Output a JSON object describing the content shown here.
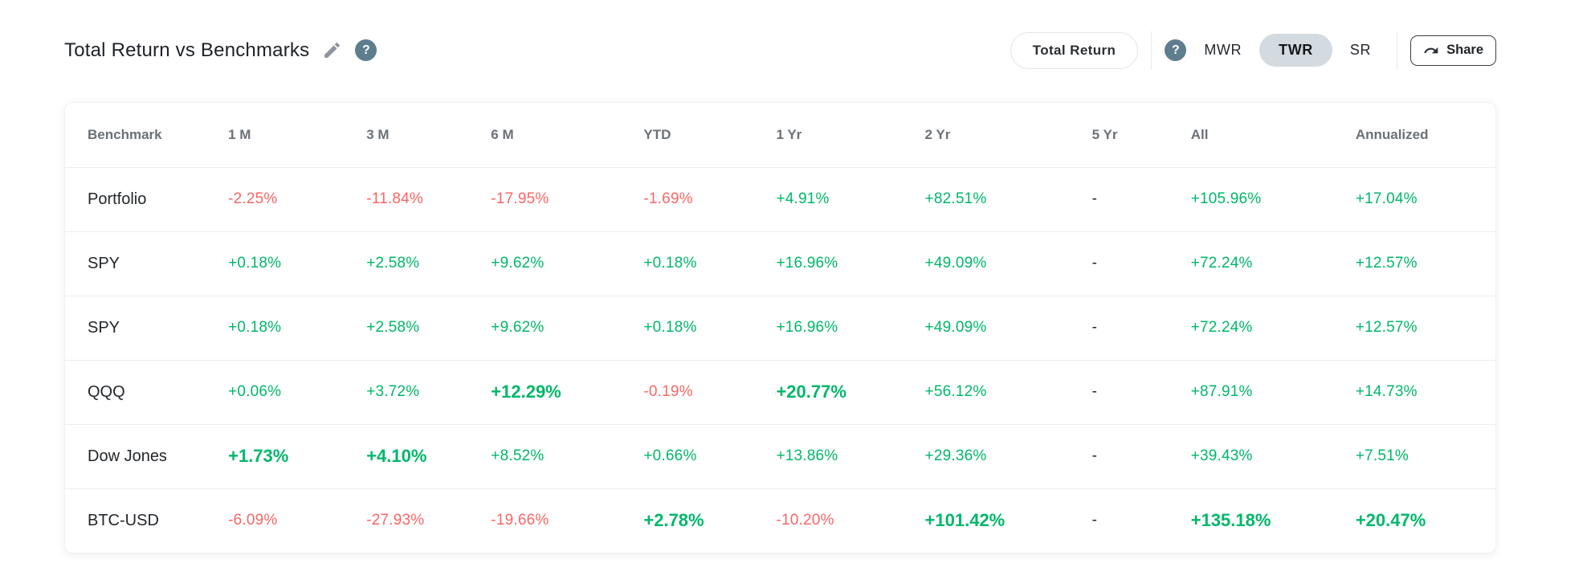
{
  "colors": {
    "positive": "#00b76a",
    "negative": "#fa6666",
    "twr_pill_bg": "#d3dae0",
    "help_icon_bg": "#5e7d8d"
  },
  "header": {
    "title": "Total Return vs Benchmarks",
    "help_glyph": "?",
    "metric_selector": "Total Return",
    "modes": [
      {
        "label": "MWR",
        "active": false
      },
      {
        "label": "TWR",
        "active": true
      },
      {
        "label": "SR",
        "active": false
      }
    ],
    "share": "Share"
  },
  "table": {
    "columns": [
      "Benchmark",
      "1 M",
      "3 M",
      "6 M",
      "YTD",
      "1 Yr",
      "2 Yr",
      "5 Yr",
      "All",
      "Annualized"
    ],
    "rows": [
      {
        "name": "Portfolio",
        "cells": [
          {
            "text": "-2.25%",
            "tone": "neg"
          },
          {
            "text": "-11.84%",
            "tone": "neg"
          },
          {
            "text": "-17.95%",
            "tone": "neg"
          },
          {
            "text": "-1.69%",
            "tone": "neg"
          },
          {
            "text": "+4.91%",
            "tone": "pos"
          },
          {
            "text": "+82.51%",
            "tone": "pos"
          },
          {
            "text": "-",
            "tone": "dash"
          },
          {
            "text": "+105.96%",
            "tone": "pos"
          },
          {
            "text": "+17.04%",
            "tone": "pos"
          }
        ]
      },
      {
        "name": "SPY",
        "cells": [
          {
            "text": "+0.18%",
            "tone": "pos"
          },
          {
            "text": "+2.58%",
            "tone": "pos"
          },
          {
            "text": "+9.62%",
            "tone": "pos"
          },
          {
            "text": "+0.18%",
            "tone": "pos"
          },
          {
            "text": "+16.96%",
            "tone": "pos"
          },
          {
            "text": "+49.09%",
            "tone": "pos"
          },
          {
            "text": "-",
            "tone": "dash"
          },
          {
            "text": "+72.24%",
            "tone": "pos"
          },
          {
            "text": "+12.57%",
            "tone": "pos"
          }
        ]
      },
      {
        "name": "SPY",
        "cells": [
          {
            "text": "+0.18%",
            "tone": "pos"
          },
          {
            "text": "+2.58%",
            "tone": "pos"
          },
          {
            "text": "+9.62%",
            "tone": "pos"
          },
          {
            "text": "+0.18%",
            "tone": "pos"
          },
          {
            "text": "+16.96%",
            "tone": "pos"
          },
          {
            "text": "+49.09%",
            "tone": "pos"
          },
          {
            "text": "-",
            "tone": "dash"
          },
          {
            "text": "+72.24%",
            "tone": "pos"
          },
          {
            "text": "+12.57%",
            "tone": "pos"
          }
        ]
      },
      {
        "name": "QQQ",
        "cells": [
          {
            "text": "+0.06%",
            "tone": "pos"
          },
          {
            "text": "+3.72%",
            "tone": "pos"
          },
          {
            "text": "+12.29%",
            "tone": "pos",
            "bold": true
          },
          {
            "text": "-0.19%",
            "tone": "neg"
          },
          {
            "text": "+20.77%",
            "tone": "pos",
            "bold": true
          },
          {
            "text": "+56.12%",
            "tone": "pos"
          },
          {
            "text": "-",
            "tone": "dash"
          },
          {
            "text": "+87.91%",
            "tone": "pos"
          },
          {
            "text": "+14.73%",
            "tone": "pos"
          }
        ]
      },
      {
        "name": "Dow Jones",
        "cells": [
          {
            "text": "+1.73%",
            "tone": "pos",
            "bold": true
          },
          {
            "text": "+4.10%",
            "tone": "pos",
            "bold": true
          },
          {
            "text": "+8.52%",
            "tone": "pos"
          },
          {
            "text": "+0.66%",
            "tone": "pos"
          },
          {
            "text": "+13.86%",
            "tone": "pos"
          },
          {
            "text": "+29.36%",
            "tone": "pos"
          },
          {
            "text": "-",
            "tone": "dash"
          },
          {
            "text": "+39.43%",
            "tone": "pos"
          },
          {
            "text": "+7.51%",
            "tone": "pos"
          }
        ]
      },
      {
        "name": "BTC-USD",
        "cells": [
          {
            "text": "-6.09%",
            "tone": "neg"
          },
          {
            "text": "-27.93%",
            "tone": "neg"
          },
          {
            "text": "-19.66%",
            "tone": "neg"
          },
          {
            "text": "+2.78%",
            "tone": "pos",
            "bold": true
          },
          {
            "text": "-10.20%",
            "tone": "neg"
          },
          {
            "text": "+101.42%",
            "tone": "pos",
            "bold": true
          },
          {
            "text": "-",
            "tone": "dash"
          },
          {
            "text": "+135.18%",
            "tone": "pos",
            "bold": true
          },
          {
            "text": "+20.47%",
            "tone": "pos",
            "bold": true
          }
        ]
      }
    ]
  }
}
